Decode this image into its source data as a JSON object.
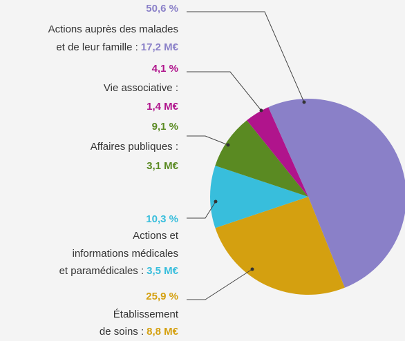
{
  "chart_data": {
    "type": "pie",
    "categories": [
      [
        "Actions auprès des malades",
        "et de leur famille :"
      ],
      [
        "Établissement",
        "de soins :"
      ],
      [
        "Actions et",
        "informations médicales",
        "et paramédicales :"
      ],
      [
        "Affaires publiques :"
      ],
      [
        "Vie associative :"
      ]
    ],
    "values": [
      50.6,
      25.9,
      10.3,
      9.1,
      4.1
    ],
    "value_labels": [
      "50,6 %",
      "25,9 %",
      "10,3 %",
      "9,1 %",
      "4,1 %"
    ],
    "amounts": [
      "17,2 M€",
      "8,8 M€",
      "3,5 M€",
      "3,1 M€",
      "1,4 M€"
    ],
    "colors": [
      "#8a80c8",
      "#d4a010",
      "#38bedc",
      "#5a8a22",
      "#b0148c"
    ]
  }
}
